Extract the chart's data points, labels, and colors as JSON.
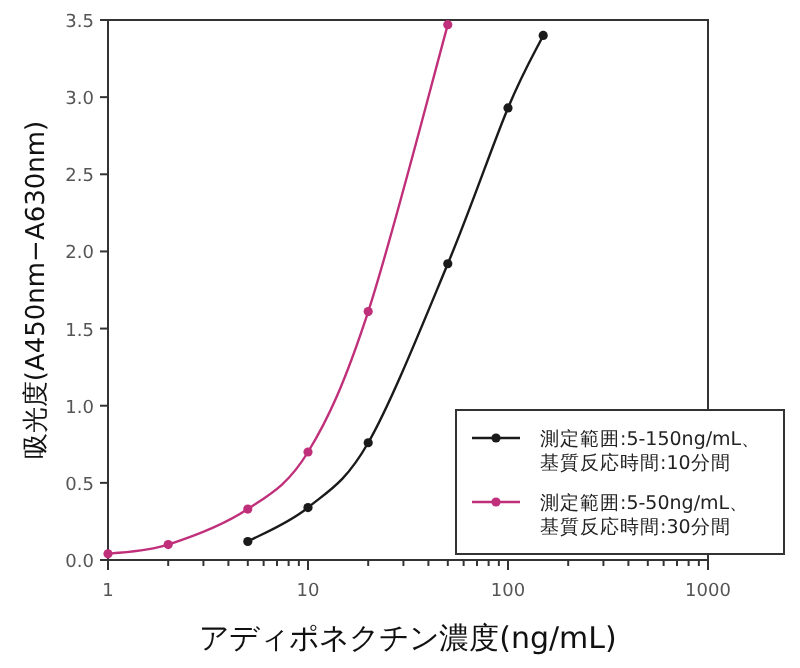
{
  "chart_data": {
    "type": "line",
    "xlabel": "アディポネクチン濃度(ng/mL)",
    "ylabel": "吸光度(A450nm−A630nm)",
    "log": "x",
    "xlim": [
      1,
      1000
    ],
    "xticks": [
      1,
      10,
      100,
      1000
    ],
    "ylim": [
      0,
      3.5
    ],
    "yticks": [
      {
        "value": 0,
        "label": "0.0"
      },
      {
        "value": 0.5,
        "label": "0.5"
      },
      {
        "value": 1,
        "label": "1.0"
      },
      {
        "value": 1.5,
        "label": "1.5"
      },
      {
        "value": 2,
        "label": "2.0"
      },
      {
        "value": 2.5,
        "label": "2.5"
      },
      {
        "value": 3,
        "label": "3.0"
      },
      {
        "value": 3.5,
        "label": "3.5"
      }
    ],
    "grid": false,
    "legend": "bottom right",
    "marker": "circle",
    "line_style": "solid",
    "series": [
      {
        "name": "測定範囲:5-150ng/mL、基質反応時間:10分間",
        "color": "#1a1a1a",
        "x": [
          5,
          10,
          20,
          50,
          100,
          150
        ],
        "values": [
          0.12,
          0.34,
          0.76,
          1.92,
          2.93,
          3.4
        ]
      },
      {
        "name": "測定範囲:5-50ng/mL、基質反応時間:30分間",
        "color": "#c0307a",
        "x": [
          1,
          2,
          5,
          10,
          20,
          50
        ],
        "values": [
          0.04,
          0.1,
          0.33,
          0.7,
          1.61,
          3.47
        ]
      }
    ]
  }
}
